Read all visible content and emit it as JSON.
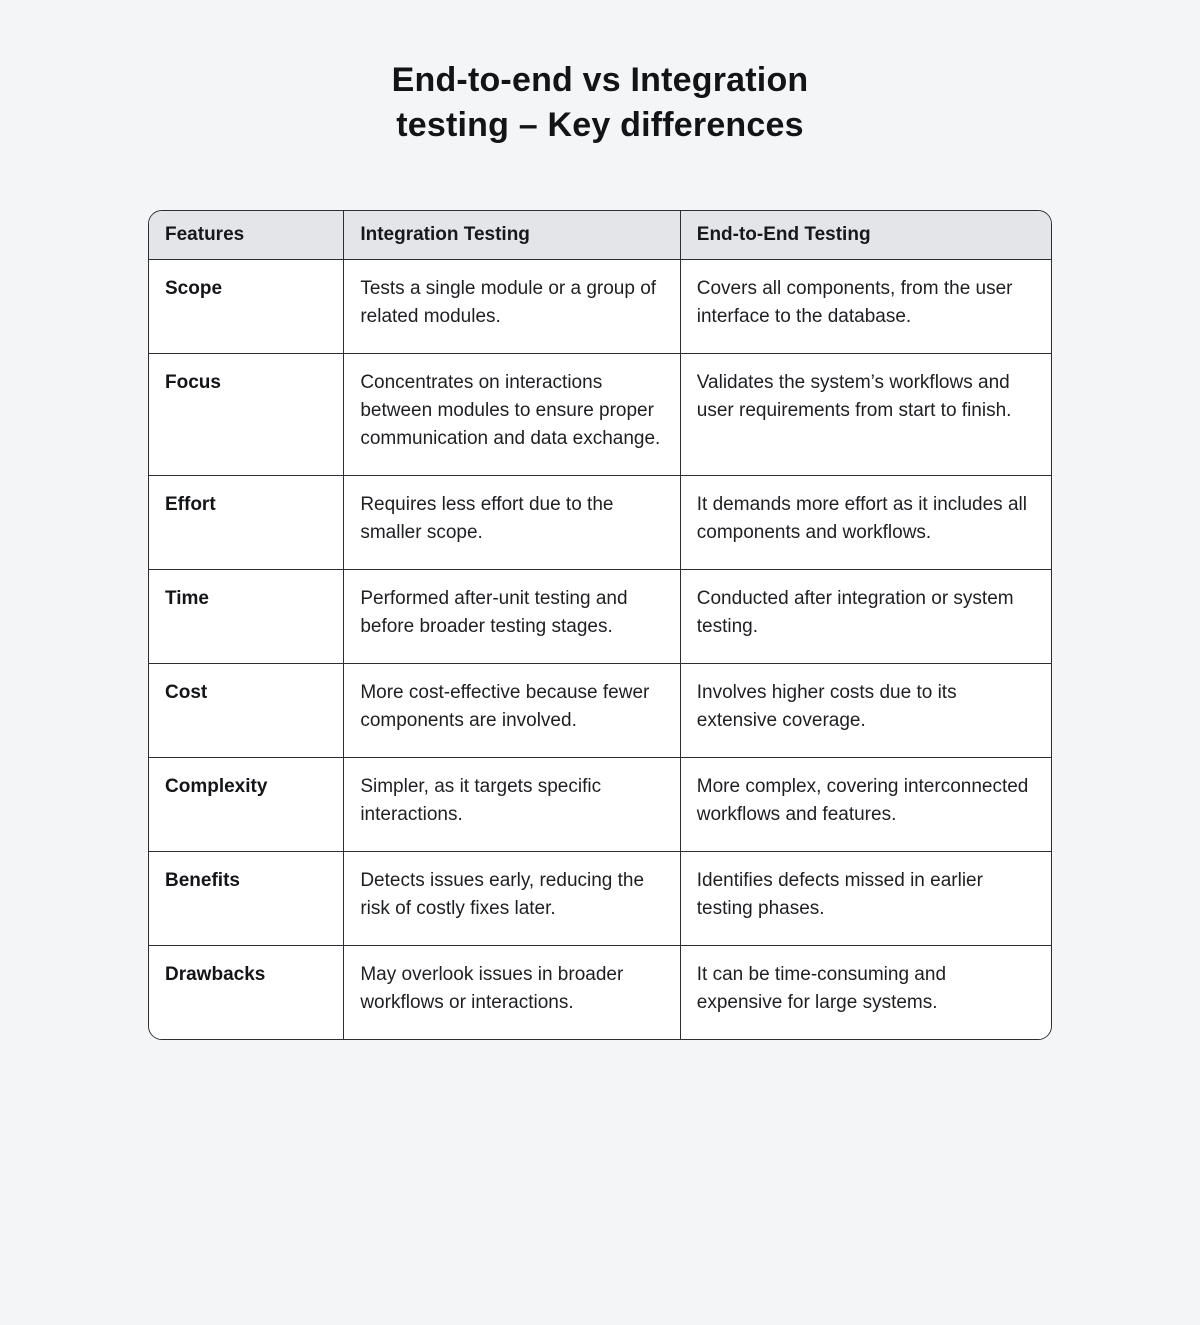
{
  "title": {
    "line1": "End-to-end vs Integration",
    "line2": "testing – Key differences"
  },
  "table": {
    "headers": [
      "Features",
      "Integration Testing",
      "End-to-End Testing"
    ],
    "rows": [
      {
        "feature": "Scope",
        "integration": "Tests a single module or a group of related modules.",
        "e2e": "Covers all components, from the user interface to the database."
      },
      {
        "feature": "Focus",
        "integration": "Concentrates on interactions between modules to ensure proper communication and data exchange.",
        "e2e": "Validates the system’s workflows and user requirements from start to finish."
      },
      {
        "feature": "Effort",
        "integration": "Requires less effort due to the smaller scope.",
        "e2e": "It demands more effort as it includes all components and workflows."
      },
      {
        "feature": "Time",
        "integration": "Performed after-unit testing and before broader testing stages.",
        "e2e": "Conducted after integration or system testing."
      },
      {
        "feature": "Cost",
        "integration": "More cost-effective because fewer components are involved.",
        "e2e": "Involves higher costs due to its extensive coverage."
      },
      {
        "feature": "Complexity",
        "integration": "Simpler, as it targets specific interactions.",
        "e2e": "More complex, covering interconnected workflows and features."
      },
      {
        "feature": "Benefits",
        "integration": "Detects issues early, reducing the risk of costly fixes later.",
        "e2e": "Identifies defects missed in earlier testing phases."
      },
      {
        "feature": "Drawbacks",
        "integration": "May overlook issues in broader workflows or interactions.",
        "e2e": "It can be time-consuming and expensive for large systems."
      }
    ]
  },
  "colors": {
    "page_background": "#f4f5f7",
    "header_background": "#e3e5e8",
    "body_background": "#ffffff",
    "border": "#2b2e33",
    "text": "#1d1f22"
  }
}
